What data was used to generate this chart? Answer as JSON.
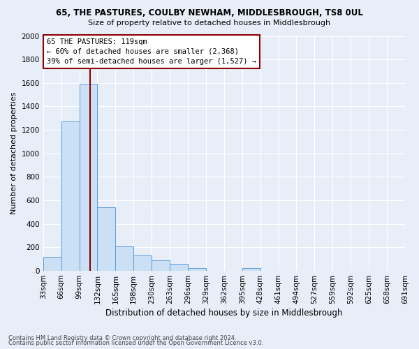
{
  "title": "65, THE PASTURES, COULBY NEWHAM, MIDDLESBROUGH, TS8 0UL",
  "subtitle": "Size of property relative to detached houses in Middlesbrough",
  "xlabel": "Distribution of detached houses by size in Middlesbrough",
  "ylabel": "Number of detached properties",
  "footnote1": "Contains HM Land Registry data © Crown copyright and database right 2024.",
  "footnote2": "Contains public sector information licensed under the Open Government Licence v3.0.",
  "property_label": "65 THE PASTURES: 119sqm",
  "annotation_line1": "← 60% of detached houses are smaller (2,368)",
  "annotation_line2": "39% of semi-detached houses are larger (1,527) →",
  "bar_edges": [
    33,
    66,
    99,
    132,
    165,
    198,
    231,
    264,
    297,
    330,
    363,
    396,
    429,
    462,
    495,
    528,
    561,
    594,
    627,
    660,
    693
  ],
  "bar_heights": [
    120,
    1270,
    1590,
    540,
    210,
    130,
    90,
    60,
    25,
    0,
    0,
    25,
    0,
    0,
    0,
    0,
    0,
    0,
    0,
    0
  ],
  "tick_labels": [
    "33sqm",
    "66sqm",
    "99sqm",
    "132sqm",
    "165sqm",
    "198sqm",
    "230sqm",
    "263sqm",
    "296sqm",
    "329sqm",
    "362sqm",
    "395sqm",
    "428sqm",
    "461sqm",
    "494sqm",
    "527sqm",
    "559sqm",
    "592sqm",
    "625sqm",
    "658sqm",
    "691sqm"
  ],
  "bar_color": "#cce0f5",
  "bar_edge_color": "#5b9bd5",
  "vline_x": 119,
  "vline_color": "#8b0000",
  "annotation_box_color": "#ffffff",
  "annotation_box_edge": "#8b0000",
  "ylim": [
    0,
    2000
  ],
  "yticks": [
    0,
    200,
    400,
    600,
    800,
    1000,
    1200,
    1400,
    1600,
    1800,
    2000
  ],
  "bg_color": "#e8eef8",
  "grid_color": "#ffffff"
}
